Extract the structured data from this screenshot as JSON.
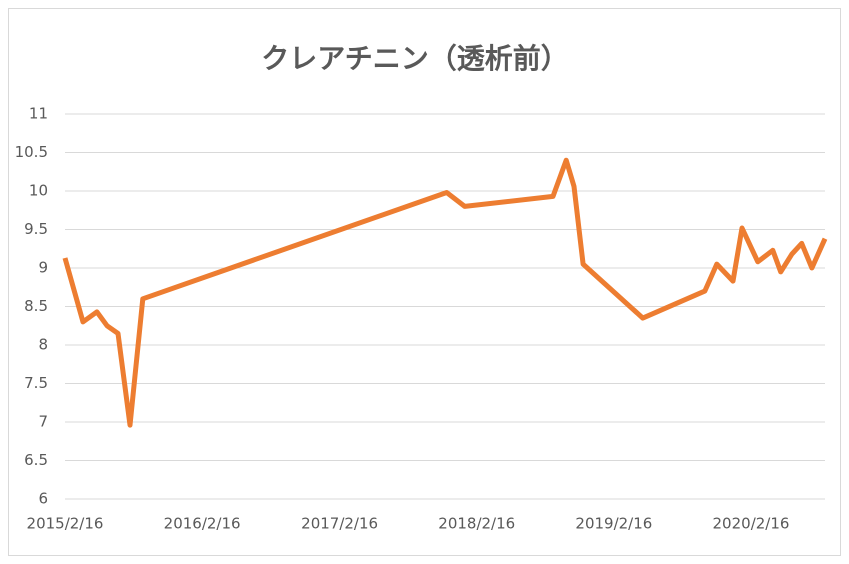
{
  "chart_data": {
    "type": "line",
    "title": "クレアチニン（透析前）",
    "x": [
      "2015/2/16",
      "2015/4/5",
      "2015/5/12",
      "2015/6/8",
      "2015/7/7",
      "2015/8/8",
      "2015/9/11",
      "2017/11/28",
      "2018/1/15",
      "2018/9/7",
      "2018/10/12",
      "2018/11/2",
      "2018/11/26",
      "2019/5/4",
      "2019/10/16",
      "2019/11/17",
      "2019/12/30",
      "2020/1/23",
      "2020/3/5",
      "2020/4/14",
      "2020/5/5",
      "2020/6/4",
      "2020/6/30",
      "2020/7/27",
      "2020/8/31"
    ],
    "series": [
      {
        "color": "#ed7d31",
        "values": [
          9.13,
          8.3,
          8.43,
          8.25,
          8.15,
          6.96,
          8.6,
          9.98,
          9.8,
          9.93,
          10.4,
          10.06,
          9.05,
          8.35,
          8.7,
          9.05,
          8.83,
          9.52,
          9.08,
          9.23,
          8.95,
          9.18,
          9.32,
          9.0,
          9.38
        ]
      }
    ],
    "xlim": [
      "2015/2/16",
      "2020/8/31"
    ],
    "xticks": [
      "2015/2/16",
      "2016/2/16",
      "2017/2/16",
      "2018/2/16",
      "2019/2/16",
      "2020/2/16"
    ],
    "ylim": [
      6,
      11
    ],
    "yticks": [
      6,
      {
        "value": 6.5,
        "label": "6.5"
      },
      7,
      {
        "value": 7.5,
        "label": "7.5"
      },
      8,
      {
        "value": 8.5,
        "label": "8.5"
      },
      9,
      {
        "value": 9.5,
        "label": "9.5"
      },
      10,
      {
        "value": 10.5,
        "label": "10.5"
      },
      11
    ],
    "grid": true
  }
}
